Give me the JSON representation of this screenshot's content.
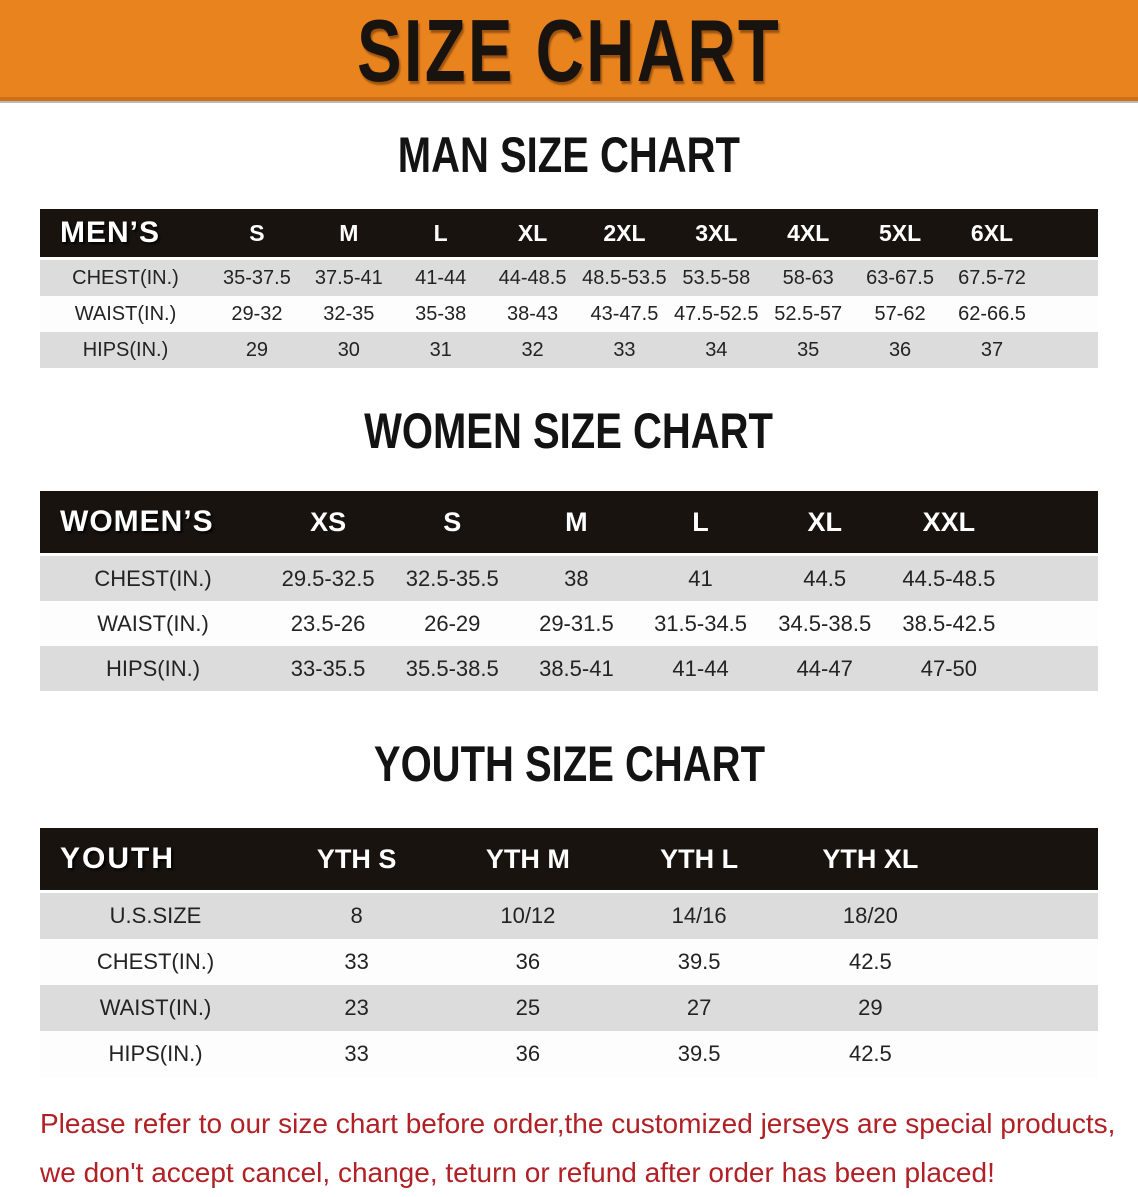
{
  "banner": {
    "title": "SIZE CHART",
    "bg_color": "#E8831E",
    "text_color": "#191310"
  },
  "colors": {
    "header_bar": "#18130F",
    "row_shade": "#DCDCDC",
    "row_light": "#FDFDFD"
  },
  "sections": [
    {
      "id": "men",
      "heading": "MAN SIZE CHART",
      "corner_label": "MEN’S",
      "columns": [
        "S",
        "M",
        "L",
        "XL",
        "2XL",
        "3XL",
        "4XL",
        "5XL",
        "6XL"
      ],
      "rows": [
        {
          "label": "CHEST(IN.)",
          "values": [
            "35-37.5",
            "37.5-41",
            "41-44",
            "44-48.5",
            "48.5-53.5",
            "53.5-58",
            "58-63",
            "63-67.5",
            "67.5-72"
          ]
        },
        {
          "label": "WAIST(IN.)",
          "values": [
            "29-32",
            "32-35",
            "35-38",
            "38-43",
            "43-47.5",
            "47.5-52.5",
            "52.5-57",
            "57-62",
            "62-66.5"
          ]
        },
        {
          "label": "HIPS(IN.)",
          "values": [
            "29",
            "30",
            "31",
            "32",
            "33",
            "34",
            "35",
            "36",
            "37"
          ]
        }
      ]
    },
    {
      "id": "women",
      "heading": "WOMEN SIZE CHART",
      "corner_label": "WOMEN’S",
      "columns": [
        "XS",
        "S",
        "M",
        "L",
        "XL",
        "XXL"
      ],
      "rows": [
        {
          "label": "CHEST(IN.)",
          "values": [
            "29.5-32.5",
            "32.5-35.5",
            "38",
            "41",
            "44.5",
            "44.5-48.5"
          ]
        },
        {
          "label": "WAIST(IN.)",
          "values": [
            "23.5-26",
            "26-29",
            "29-31.5",
            "31.5-34.5",
            "34.5-38.5",
            "38.5-42.5"
          ]
        },
        {
          "label": "HIPS(IN.)",
          "values": [
            "33-35.5",
            "35.5-38.5",
            "38.5-41",
            "41-44",
            "44-47",
            "47-50"
          ]
        }
      ]
    },
    {
      "id": "youth",
      "heading": "YOUTH SIZE CHART",
      "corner_label": "YOUTH",
      "columns": [
        "YTH S",
        "YTH M",
        "YTH L",
        "YTH XL"
      ],
      "rows": [
        {
          "label": "U.S.SIZE",
          "values": [
            "8",
            "10/12",
            "14/16",
            "18/20"
          ]
        },
        {
          "label": "CHEST(IN.)",
          "values": [
            "33",
            "36",
            "39.5",
            "42.5"
          ]
        },
        {
          "label": "WAIST(IN.)",
          "values": [
            "23",
            "25",
            "27",
            "29"
          ]
        },
        {
          "label": "HIPS(IN.)",
          "values": [
            "33",
            "36",
            "39.5",
            "42.5"
          ]
        }
      ]
    }
  ],
  "disclaimer": {
    "color": "#B02025",
    "line1": "Please refer to our size chart before order,the customized jerseys are special products,",
    "line2": "we don't accept cancel, change, teturn or refund after order has been placed!"
  }
}
